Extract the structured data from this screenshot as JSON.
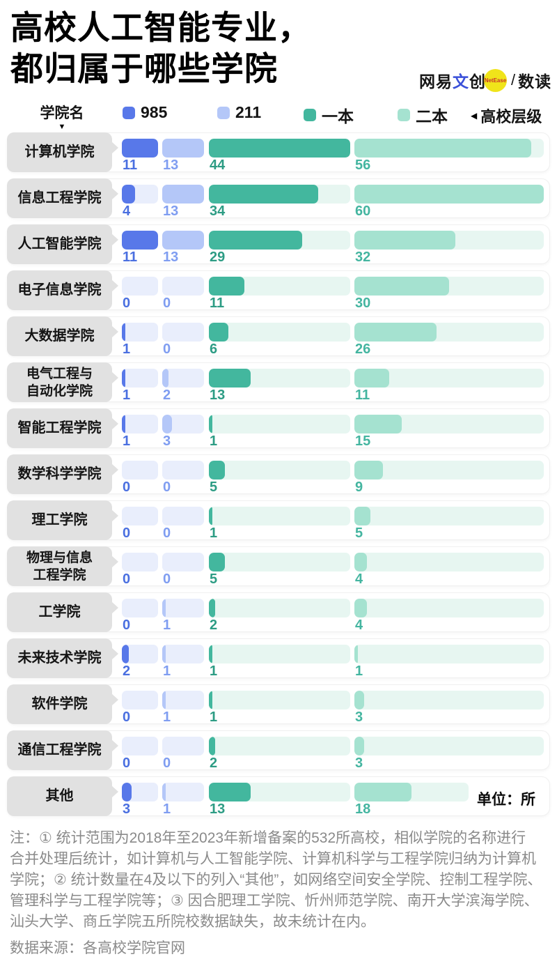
{
  "title": {
    "line1": "高校人工智能专业，",
    "line2": "都归属于哪些学院"
  },
  "logo": {
    "brand_prefix": "网易",
    "brand_accent": "文",
    "brand_suffix": "创",
    "badge": "NetEase",
    "separator": "/",
    "product": "数读",
    "badge_color": "#F0E41A",
    "badge_text_color": "#C9342B",
    "accent_color": "#3A50D9"
  },
  "legend": {
    "college_label": "学院名",
    "sort_icon": "▼",
    "tier_arrow": "◀",
    "tier_label": "高校层级"
  },
  "chart_data": {
    "type": "bar",
    "orientation": "horizontal",
    "unit_label": "单位：所",
    "categories": [
      "计算机学院",
      "信息工程学院",
      "人工智能学院",
      "电子信息学院",
      "大数据学院",
      "电气工程与\n自动化学院",
      "智能工程学院",
      "数学科学学院",
      "理工学院",
      "物理与信息\n工程学院",
      "工学院",
      "未来技术学院",
      "软件学院",
      "通信工程学院",
      "其他"
    ],
    "series": [
      {
        "name": "985",
        "color": "#5878E9",
        "track_color": "#E9EEFC",
        "value_color": "#4A6FE0",
        "max": 11,
        "values": [
          11,
          4,
          11,
          0,
          1,
          1,
          1,
          0,
          0,
          0,
          0,
          2,
          0,
          0,
          3
        ]
      },
      {
        "name": "211",
        "color": "#B4C7F8",
        "track_color": "#E9EEFC",
        "value_color": "#7F9DF1",
        "max": 13,
        "values": [
          13,
          13,
          13,
          0,
          0,
          2,
          3,
          0,
          0,
          0,
          1,
          1,
          1,
          0,
          1
        ]
      },
      {
        "name": "一本",
        "color": "#43B79E",
        "track_color": "#E7F6F1",
        "value_color": "#2D9C84",
        "max": 44,
        "values": [
          44,
          34,
          29,
          11,
          6,
          13,
          1,
          5,
          1,
          5,
          2,
          1,
          1,
          2,
          13
        ]
      },
      {
        "name": "二本",
        "color": "#A5E2D0",
        "track_color": "#E7F6F1",
        "value_color": "#44B5A0",
        "max": 60,
        "values": [
          56,
          60,
          32,
          30,
          26,
          11,
          15,
          9,
          5,
          4,
          4,
          1,
          3,
          3,
          18
        ]
      }
    ]
  },
  "notes": {
    "lines": [
      "注：① 统计范围为2018年至2023年新增备案的532所高校，相似学院的名称进行",
      "合并处理后统计，如计算机与人工智能学院、计算机科学与工程学院归纳为计算机",
      "学院；② 统计数量在4及以下的列入“其他”，如网络空间安全学院、控制工程学院、",
      "管理科学与工程学院等；③ 因合肥理工学院、忻州师范学院、南开大学滨海学院、",
      "汕头大学、商丘学院五所院校数据缺失，故未统计在内。"
    ],
    "source": "数据来源：各高校学院官网"
  }
}
